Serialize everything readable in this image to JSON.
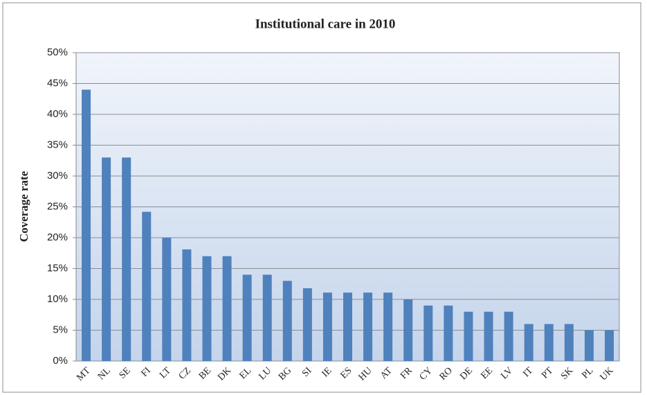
{
  "chart_data": {
    "type": "bar",
    "title": "Institutional care in 2010",
    "y_label": "Coverage rate",
    "categories": [
      "MT",
      "NL",
      "SE",
      "FI",
      "LT",
      "CZ",
      "BE",
      "DK",
      "EL",
      "LU",
      "BG",
      "SI",
      "IE",
      "ES",
      "HU",
      "AT",
      "FR",
      "CY",
      "RO",
      "DE",
      "EE",
      "LV",
      "IT",
      "PT",
      "SK",
      "PL",
      "UK"
    ],
    "values": [
      44,
      33,
      33,
      24.2,
      20,
      18.1,
      17,
      17,
      14,
      14,
      13,
      11.8,
      11.1,
      11.1,
      11.1,
      11.1,
      10,
      9,
      9,
      8,
      8,
      8,
      6,
      6,
      6,
      5,
      5
    ],
    "color": "#4f81bd",
    "ylim": [
      0,
      50
    ],
    "yticks": [
      {
        "value": 0,
        "label": "0%"
      },
      {
        "value": 5,
        "label": "5%"
      },
      {
        "value": 10,
        "label": "10%"
      },
      {
        "value": 15,
        "label": "15%"
      },
      {
        "value": 20,
        "label": "20%"
      },
      {
        "value": 25,
        "label": "25%"
      },
      {
        "value": 30,
        "label": "30%"
      },
      {
        "value": 35,
        "label": "35%"
      },
      {
        "value": 40,
        "label": "40%"
      },
      {
        "value": 45,
        "label": "45%"
      },
      {
        "value": 50,
        "label": "50%"
      }
    ],
    "grid": true
  }
}
